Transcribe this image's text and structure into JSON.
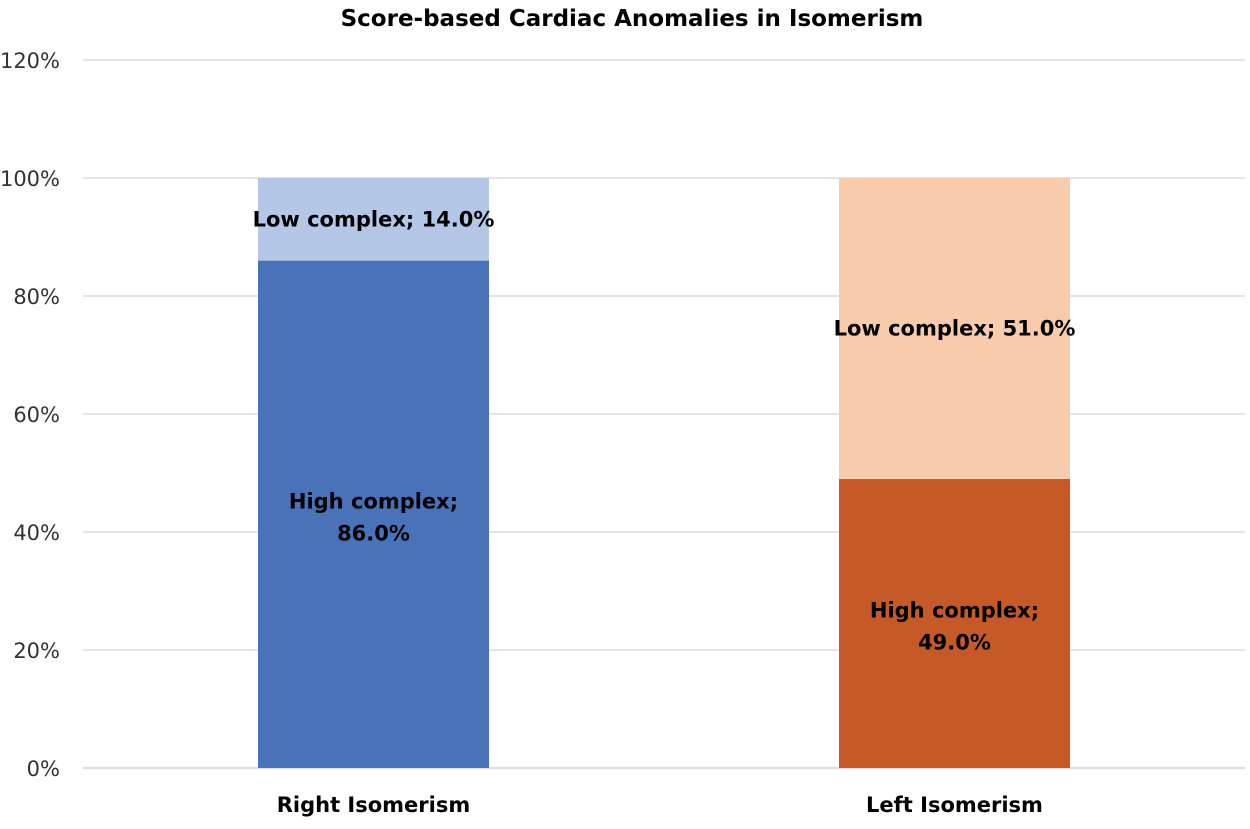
{
  "chart_data": {
    "type": "bar",
    "stacked": true,
    "title": "Score-based Cardiac Anomalies in Isomerism",
    "xlabel": "",
    "ylabel": "",
    "categories": [
      "Right Isomerism",
      "Left Isomerism"
    ],
    "ylim": [
      0,
      1.2
    ],
    "yticks": [
      "0%",
      "20%",
      "40%",
      "60%",
      "80%",
      "100%",
      "120%"
    ],
    "grid": true,
    "legend": "none",
    "series": [
      {
        "name": "High complex",
        "values": [
          0.86,
          0.49
        ],
        "labels": [
          "High complex;",
          "High complex;"
        ],
        "value_labels": [
          "86.0%",
          "49.0%"
        ]
      },
      {
        "name": "Low complex",
        "values": [
          0.14,
          0.51
        ],
        "labels": [
          "Low complex; 14.0%",
          "Low complex; 51.0%"
        ]
      }
    ],
    "colors": {
      "Right Isomerism": {
        "High complex": "#4a72b8",
        "Low complex": "#b4c7e7"
      },
      "Left Isomerism": {
        "High complex": "#c55a28",
        "Low complex": "#f8cbad"
      }
    }
  }
}
